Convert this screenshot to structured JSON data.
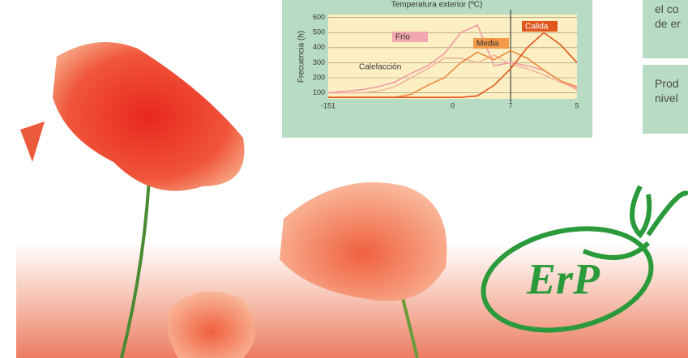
{
  "chart_data": {
    "type": "line",
    "title": "Temperatura exterior (ºC)",
    "y_label": "Frecuencia (h)",
    "x": [
      -15,
      -13,
      -11,
      -9,
      -7,
      -5,
      -3,
      -1,
      1,
      3,
      5,
      7,
      9,
      11,
      13,
      15
    ],
    "series": [
      {
        "name": "Calefacción",
        "color": "#f3b59c",
        "values": [
          100,
          100,
          100,
          110,
          140,
          200,
          260,
          330,
          330,
          300,
          350,
          290,
          260,
          220,
          170,
          130
        ]
      },
      {
        "name": "Frío",
        "color": "#f19aa6",
        "values": [
          100,
          110,
          120,
          140,
          170,
          230,
          280,
          360,
          500,
          550,
          280,
          300,
          280,
          250,
          180,
          120
        ]
      },
      {
        "name": "Media",
        "color": "#ef8a3c",
        "values": [
          70,
          70,
          70,
          70,
          70,
          90,
          150,
          200,
          300,
          370,
          320,
          380,
          330,
          250,
          180,
          140
        ]
      },
      {
        "name": "Calida",
        "color": "#e2561e",
        "values": [
          70,
          70,
          70,
          70,
          70,
          70,
          70,
          70,
          70,
          80,
          150,
          260,
          400,
          500,
          420,
          300
        ]
      }
    ],
    "xlim": [
      -15,
      15
    ],
    "ylim": [
      60,
      620
    ],
    "xticks": [
      {
        "value": -15,
        "label": "-151"
      },
      0,
      7,
      {
        "value": 15,
        "label": "5"
      }
    ],
    "yticks": [
      100,
      200,
      300,
      400,
      500,
      600
    ],
    "marker_x": 7,
    "grid": true
  },
  "side_boxes": [
    [
      "el co",
      "de er"
    ],
    [
      "Prod",
      "nivel"
    ]
  ],
  "logo_text": "ErP"
}
